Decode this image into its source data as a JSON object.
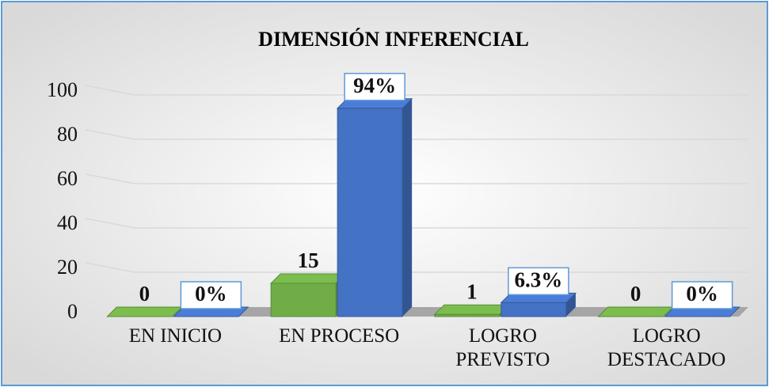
{
  "chart_data": {
    "type": "bar3d",
    "title": "DIMENSIÓN INFERENCIAL",
    "categories": [
      "EN INICIO",
      "EN PROCESO",
      "LOGRO\nPREVISTO",
      "LOGRO\nDESTACADO"
    ],
    "series": [
      {
        "color": "#70ad47",
        "values": [
          0,
          15,
          1,
          0
        ]
      },
      {
        "color": "#4472c4",
        "values": [
          0,
          94,
          6.3,
          0
        ],
        "value_labels": [
          "0%",
          "94%",
          "6.3%",
          "0%"
        ]
      }
    ],
    "ylim": [
      0,
      100
    ],
    "yticks": [
      0,
      20,
      40,
      60,
      80,
      100
    ],
    "grid": true
  }
}
